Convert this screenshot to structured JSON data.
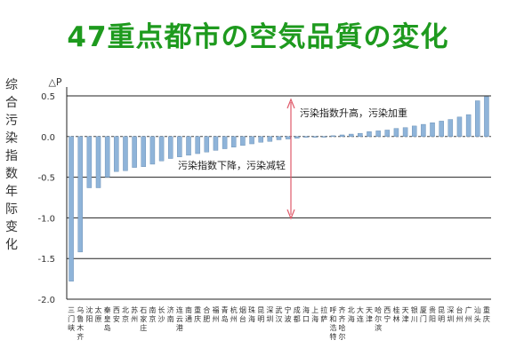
{
  "slide": {
    "title": "47重点都市の空気品質の変化"
  },
  "chart_data": {
    "type": "bar",
    "ylabel": "综合污染指数年际变化",
    "yunit": "△P",
    "ylim": [
      -2.0,
      0.5
    ],
    "yticks": [
      0.5,
      0.0,
      -0.5,
      -1.0,
      -1.5,
      -2.0
    ],
    "ytick_labels": [
      "0.5",
      "0.0",
      "-0.5",
      "-1.0",
      "-1.5",
      "-2.0"
    ],
    "grid": true,
    "bar_color": "#8fb4d9",
    "annotations": [
      {
        "text": "污染指数升高，污染加重"
      },
      {
        "text": "污染指数下降，污染减轻"
      }
    ],
    "categories": [
      "三门峡",
      "乌鲁木齐",
      "沈阳",
      "太原",
      "秦皇岛",
      "西安",
      "北京",
      "苏州",
      "石家庄",
      "南京",
      "长沙",
      "济南",
      "连云港",
      "南通",
      "重庆",
      "合肥",
      "福州",
      "青岛",
      "杭州",
      "烟台",
      "珠海",
      "昆明",
      "深圳",
      "武汉",
      "宁波",
      "成都",
      "海口",
      "上海",
      "拉萨",
      "呼和浩特",
      "齐齐哈尔",
      "北海",
      "大连",
      "天津",
      "哈尔滨",
      "西宁",
      "桂林",
      "天津",
      "银川",
      "厦门",
      "贵阳",
      "昆明",
      "深圳",
      "台州",
      "广州",
      "汕头",
      "重庆"
    ],
    "values": [
      -1.78,
      -1.42,
      -0.63,
      -0.63,
      -0.5,
      -0.43,
      -0.42,
      -0.38,
      -0.37,
      -0.34,
      -0.3,
      -0.27,
      -0.25,
      -0.23,
      -0.21,
      -0.19,
      -0.17,
      -0.15,
      -0.13,
      -0.11,
      -0.09,
      -0.07,
      -0.06,
      -0.04,
      -0.03,
      -0.02,
      -0.01,
      -0.01,
      0.0,
      0.01,
      0.02,
      0.03,
      0.04,
      0.06,
      0.07,
      0.08,
      0.1,
      0.11,
      0.13,
      0.15,
      0.17,
      0.19,
      0.21,
      0.24,
      0.27,
      0.44,
      0.49
    ]
  }
}
